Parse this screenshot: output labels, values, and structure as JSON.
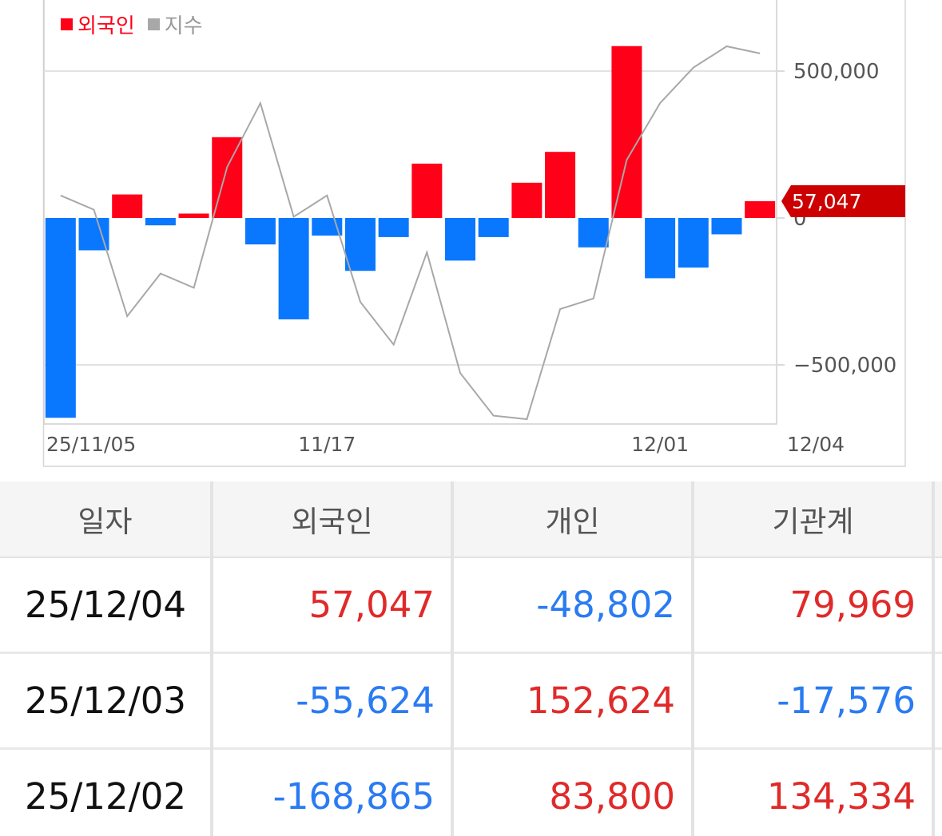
{
  "legend": [
    {
      "label": "외국인",
      "color": "#ff0019"
    },
    {
      "label": "지수",
      "color": "#a8a8a8"
    }
  ],
  "chart_data": {
    "type": "bar",
    "x": [
      "25/11/05",
      "11/06",
      "11/07",
      "11/10",
      "11/11",
      "11/12",
      "11/13",
      "11/14",
      "11/17",
      "11/18",
      "11/19",
      "11/20",
      "11/21",
      "11/24",
      "11/25",
      "11/26",
      "11/27",
      "11/28",
      "12/01",
      "12/02",
      "12/03",
      "12/04"
    ],
    "series": [
      {
        "name": "외국인",
        "values": [
          -680000,
          -110000,
          80000,
          -25000,
          15000,
          275000,
          -90000,
          -345000,
          -60000,
          -180000,
          -65000,
          185000,
          -145000,
          -65000,
          120000,
          225000,
          -100000,
          585000,
          -205000,
          -168865,
          -55624,
          57047
        ]
      },
      {
        "name": "지수",
        "values": [
          3960,
          3940,
          3790,
          3850,
          3830,
          4000,
          4090,
          3930,
          3960,
          3810,
          3750,
          3880,
          3710,
          3650,
          3645,
          3800,
          3815,
          4010,
          4090,
          4140,
          4170,
          4160
        ]
      }
    ],
    "positive_color": "#ff0019",
    "negative_color": "#0a77ff",
    "line_color": "#a8a8a8",
    "y_ticks": [
      500000,
      0,
      -500000
    ],
    "y_tick_labels": [
      "500,000",
      "0",
      "−500,000"
    ],
    "ylim": [
      -700000,
      750000
    ],
    "x_tick_labels": [
      {
        "index": 0,
        "label": "25/11/05"
      },
      {
        "index": 8,
        "label": "11/17"
      },
      {
        "index": 18,
        "label": "12/01"
      },
      {
        "index": 21,
        "label": "12/04"
      }
    ],
    "last_value_label": "57,047",
    "last_value_color": "#cc0000",
    "grid": true
  },
  "table": {
    "headers": [
      "일자",
      "외국인",
      "개인",
      "기관계"
    ],
    "rows": [
      {
        "date": "25/12/04",
        "cells": [
          {
            "v": "57,047",
            "s": "pos"
          },
          {
            "v": "-48,802",
            "s": "neg"
          },
          {
            "v": "79,969",
            "s": "pos"
          }
        ]
      },
      {
        "date": "25/12/03",
        "cells": [
          {
            "v": "-55,624",
            "s": "neg"
          },
          {
            "v": "152,624",
            "s": "pos"
          },
          {
            "v": "-17,576",
            "s": "neg"
          }
        ]
      },
      {
        "date": "25/12/02",
        "cells": [
          {
            "v": "-168,865",
            "s": "neg"
          },
          {
            "v": "83,800",
            "s": "pos"
          },
          {
            "v": "134,334",
            "s": "pos"
          }
        ]
      }
    ]
  }
}
